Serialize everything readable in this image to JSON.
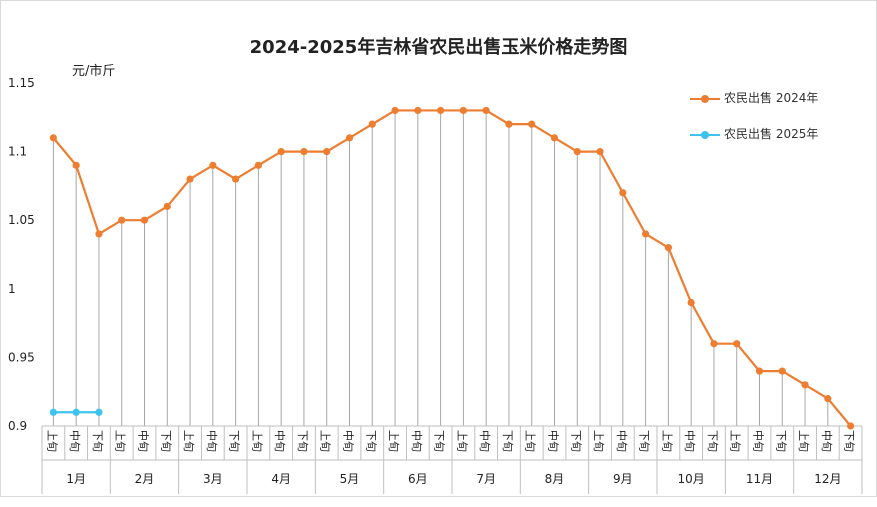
{
  "title": "2024-2025年吉林省农民出售玉米价格走势图",
  "unit_label": "元/市斤",
  "colors": {
    "series_2024": "#ed7d31",
    "series_2025": "#3ec3f0",
    "gridline": "#a6a6a6",
    "axis": "#bfbfbf"
  },
  "legend": [
    {
      "name": "农民出售 2024年",
      "color": "#ed7d31"
    },
    {
      "name": "农民出售 2025年",
      "color": "#3ec3f0"
    }
  ],
  "chart_data": {
    "type": "line",
    "title": "2024-2025年吉林省农民出售玉米价格走势图",
    "ylabel": "元/市斤",
    "ylim": [
      0.9,
      1.15
    ],
    "yticks": [
      "0.9",
      "0.95",
      "1",
      "1.05",
      "1.1",
      "1.15"
    ],
    "x_sub_labels": [
      "上旬",
      "中旬",
      "下旬"
    ],
    "months": [
      "1月",
      "2月",
      "3月",
      "4月",
      "5月",
      "6月",
      "7月",
      "8月",
      "9月",
      "10月",
      "11月",
      "12月"
    ],
    "drop_lines": true,
    "legend_position": "top-right",
    "series": [
      {
        "name": "农民出售 2024年",
        "color": "#ed7d31",
        "values": [
          1.11,
          1.09,
          1.04,
          1.05,
          1.05,
          1.06,
          1.08,
          1.09,
          1.08,
          1.09,
          1.1,
          1.1,
          1.1,
          1.11,
          1.12,
          1.13,
          1.13,
          1.13,
          1.13,
          1.13,
          1.12,
          1.12,
          1.11,
          1.1,
          1.1,
          1.07,
          1.04,
          1.03,
          0.99,
          0.96,
          0.96,
          0.94,
          0.94,
          0.93,
          0.92,
          0.9
        ]
      },
      {
        "name": "农民出售 2025年",
        "color": "#3ec3f0",
        "values": [
          0.91,
          0.91,
          0.91
        ]
      }
    ]
  }
}
